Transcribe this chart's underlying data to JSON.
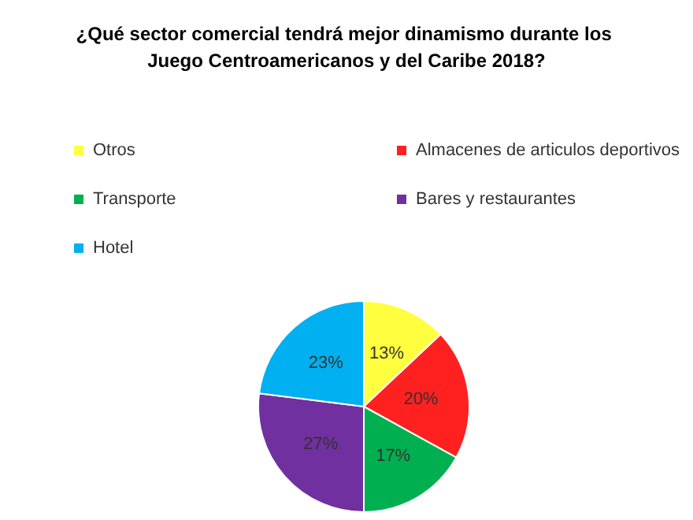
{
  "chart_data": {
    "type": "pie",
    "title": "¿Qué sector comercial tendrá mejor dinamismo durante los Juego Centroamericanos y del Caribe 2018?",
    "categories": [
      "Otros",
      "Almacenes de articulos deportivos",
      "Transporte",
      "Bares y restaurantes",
      "Hotel"
    ],
    "values": [
      13,
      20,
      17,
      27,
      23
    ],
    "colors": [
      "#ffff40",
      "#ff2020",
      "#00b050",
      "#7030a0",
      "#00b0f0"
    ],
    "value_labels": [
      "13%",
      "20%",
      "17%",
      "27%",
      "23%"
    ],
    "legend": "top"
  }
}
